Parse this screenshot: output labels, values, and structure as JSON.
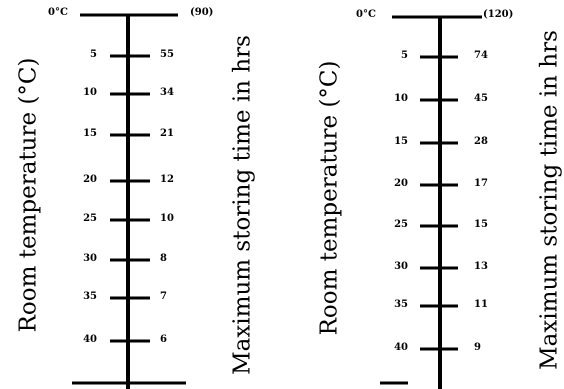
{
  "nomograms": [
    {
      "left_axis_label": "Room temperature (°C)",
      "right_axis_label": "Maximum storing time in hrs",
      "top_left": "0°C",
      "top_right": "(90)",
      "rows": [
        {
          "temp": "5",
          "time": "55"
        },
        {
          "temp": "10",
          "time": "34"
        },
        {
          "temp": "15",
          "time": "21"
        },
        {
          "temp": "20",
          "time": "12"
        },
        {
          "temp": "25",
          "time": "10"
        },
        {
          "temp": "30",
          "time": "8"
        },
        {
          "temp": "35",
          "time": "7"
        },
        {
          "temp": "40",
          "time": "6"
        }
      ]
    },
    {
      "left_axis_label": "Room temperature (°C)",
      "right_axis_label": "Maximum storing time in hrs",
      "top_left": "0°C",
      "top_right": "(120)",
      "rows": [
        {
          "temp": "5",
          "time": "74"
        },
        {
          "temp": "10",
          "time": "45"
        },
        {
          "temp": "15",
          "time": "28"
        },
        {
          "temp": "20",
          "time": "17"
        },
        {
          "temp": "25",
          "time": "15"
        },
        {
          "temp": "30",
          "time": "13"
        },
        {
          "temp": "35",
          "time": "11"
        },
        {
          "temp": "40",
          "time": "9"
        }
      ]
    }
  ]
}
